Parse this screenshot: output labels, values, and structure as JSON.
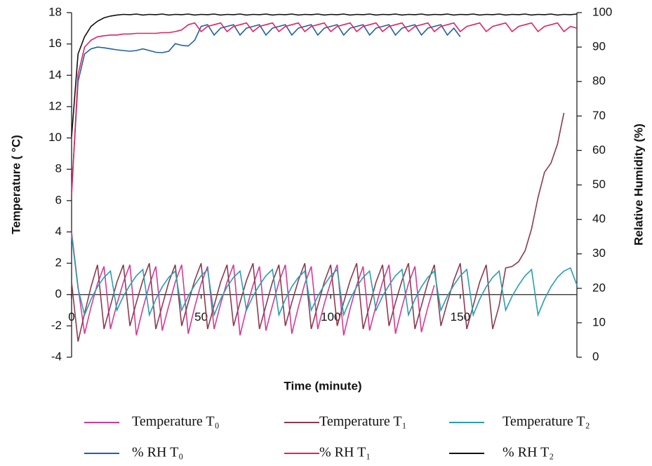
{
  "chart_data": {
    "type": "line",
    "x_label": "Time (minute)",
    "y_label": "Temperature ( °C)",
    "y2_label": "Relative Humidity (%)",
    "xlim": [
      0,
      195
    ],
    "xticks": [
      0,
      50,
      100,
      150
    ],
    "ylim": [
      -4,
      18
    ],
    "yticks": [
      -4,
      -2,
      0,
      2,
      4,
      6,
      8,
      10,
      12,
      14,
      16,
      18
    ],
    "y2lim": [
      0,
      100
    ],
    "y2ticks": [
      0,
      10,
      20,
      30,
      40,
      50,
      60,
      70,
      80,
      90,
      100
    ],
    "x": [
      0,
      2.5,
      5,
      7.5,
      10,
      12.5,
      15,
      17.5,
      20,
      22.5,
      25,
      27.5,
      30,
      32.5,
      35,
      37.5,
      40,
      42.5,
      45,
      47.5,
      50,
      52.5,
      55,
      57.5,
      60,
      62.5,
      65,
      67.5,
      70,
      72.5,
      75,
      77.5,
      80,
      82.5,
      85,
      87.5,
      90,
      92.5,
      95,
      97.5,
      100,
      102.5,
      105,
      107.5,
      110,
      112.5,
      115,
      117.5,
      120,
      122.5,
      125,
      127.5,
      130,
      132.5,
      135,
      137.5,
      140,
      142.5,
      145,
      147.5,
      150,
      152.5,
      155,
      157.5,
      160,
      162.5,
      165,
      167.5,
      170,
      172.5,
      175,
      177.5,
      180,
      182.5,
      185,
      187.5,
      190,
      192.5,
      195
    ],
    "series": [
      {
        "name": "Temperature T₀",
        "color": "#d4399a",
        "values": [
          4,
          0.5,
          -2.5,
          -0.8,
          0.7,
          1.8,
          -2.2,
          -0.6,
          0.8,
          1.9,
          -2.6,
          -0.9,
          0.6,
          1.8,
          -2.3,
          -0.7,
          0.8,
          1.9,
          -2.5,
          -0.8,
          0.7,
          1.8,
          -2.2,
          -0.6,
          0.8,
          1.9,
          -2.6,
          -0.9,
          0.6,
          1.8,
          -2.3,
          -0.7,
          0.8,
          1.9,
          -2.5,
          -0.8,
          0.7,
          1.8,
          -2.2,
          -0.6,
          0.8,
          1.9,
          -2.6,
          -0.9,
          0.6,
          1.8,
          -2.3,
          -0.7,
          0.8,
          1.9,
          -2.5,
          -0.8,
          0.7,
          1.8,
          -2.4,
          -0.8,
          0.6,
          null,
          null,
          null,
          null,
          null,
          null,
          null,
          null,
          null,
          null,
          null,
          null,
          null,
          null,
          null,
          null,
          null,
          null,
          null,
          null,
          null,
          null
        ]
      },
      {
        "name": "Temperature T₁",
        "color": "#8c3a4e",
        "values": [
          0.8,
          -3,
          -1.2,
          0.5,
          1.9,
          -2.2,
          -0.7,
          0.8,
          1.9,
          -2,
          -0.5,
          0.9,
          2,
          -2.2,
          -0.7,
          0.8,
          1.9,
          -2,
          -0.5,
          0.9,
          2,
          -2.2,
          -0.7,
          0.8,
          1.9,
          -2,
          -0.5,
          0.9,
          2,
          -2.2,
          -0.7,
          0.8,
          1.9,
          -2,
          -0.5,
          0.9,
          2,
          -2.2,
          -0.7,
          0.8,
          1.9,
          -2,
          -0.5,
          0.9,
          2,
          -2.2,
          -0.7,
          0.8,
          1.9,
          -2,
          -0.5,
          0.9,
          2,
          -2.2,
          -0.7,
          0.8,
          1.9,
          -2,
          -0.5,
          0.9,
          2,
          -2.2,
          -0.7,
          0.8,
          1.9,
          -2.2,
          -0.7,
          1.7,
          1.8,
          2.1,
          2.8,
          4.2,
          6.2,
          7.8,
          8.4,
          9.6,
          11.6,
          null,
          null
        ]
      },
      {
        "name": "Temperature T₂",
        "color": "#2a9db4",
        "values": [
          3.8,
          0.4,
          -1.3,
          -0.3,
          0.5,
          1.1,
          1.5,
          -1,
          -0.1,
          0.6,
          1.2,
          1.6,
          -1.3,
          -0.3,
          0.5,
          1.1,
          1.5,
          -1,
          -0.1,
          0.6,
          1.2,
          1.6,
          -1.3,
          -0.3,
          0.5,
          1.1,
          1.5,
          -1,
          -0.1,
          0.6,
          1.2,
          1.6,
          -1.3,
          -0.3,
          0.5,
          1.1,
          1.5,
          -1,
          -0.1,
          0.6,
          1.2,
          1.6,
          -1.3,
          -0.3,
          0.5,
          1.1,
          1.5,
          -1,
          -0.1,
          0.6,
          1.2,
          1.6,
          -1.3,
          -0.3,
          0.5,
          1.1,
          1.5,
          -1,
          -0.1,
          0.6,
          1.2,
          1.6,
          -1.3,
          -0.3,
          0.5,
          1.1,
          1.5,
          -1,
          -0.1,
          0.6,
          1.2,
          1.6,
          -1.3,
          -0.3,
          0.5,
          1.1,
          1.5,
          1.7,
          0.6
        ]
      },
      {
        "name": "% RH T₀",
        "color": "#1f5fae",
        "axis": "y2",
        "values": [
          48,
          80,
          88,
          89.5,
          90,
          89.8,
          89.5,
          89.2,
          89,
          88.8,
          89,
          89.5,
          89,
          88.5,
          88.4,
          88.8,
          91,
          90.5,
          90.3,
          92,
          96,
          96.5,
          93.5,
          95.5,
          96,
          96.5,
          93.5,
          95.5,
          96,
          96.5,
          93.5,
          95.5,
          96,
          96.5,
          93.5,
          95.5,
          96,
          96.5,
          93.5,
          95.5,
          96,
          96.5,
          93.5,
          95.5,
          96,
          96.5,
          93.5,
          95.5,
          96,
          96.5,
          93.5,
          95.5,
          96,
          96.5,
          93.5,
          95.5,
          96,
          96.5,
          93.5,
          95.5,
          93,
          null,
          null,
          null,
          null,
          null,
          null,
          null,
          null,
          null,
          null,
          null,
          null,
          null,
          null,
          null,
          null,
          null,
          null
        ]
      },
      {
        "name": "% RH T₁",
        "color": "#e0245e",
        "axis": "y2",
        "values": [
          47,
          82,
          90,
          92,
          93,
          93.3,
          93.5,
          93.5,
          93.8,
          93.8,
          94,
          94,
          94,
          94,
          94.2,
          94.2,
          94.5,
          95,
          96.5,
          97,
          94.5,
          96,
          96.5,
          97,
          94.5,
          96,
          96.5,
          97,
          94.5,
          96,
          96.5,
          97,
          94.5,
          96,
          96.5,
          97,
          94.5,
          96,
          96.5,
          97,
          94.5,
          96,
          96.5,
          97,
          94.5,
          96,
          96.5,
          97,
          94.5,
          96,
          96.5,
          97,
          94.5,
          96,
          96.5,
          97,
          94.5,
          96,
          96.5,
          97,
          94.5,
          96,
          96.5,
          97,
          94.5,
          96,
          96.5,
          97,
          94.5,
          96,
          96.5,
          97,
          94.5,
          96,
          96.5,
          97,
          94.5,
          96,
          95.5
        ]
      },
      {
        "name": "% RH T₂",
        "color": "#111111",
        "axis": "y2",
        "values": [
          64,
          88,
          93,
          96,
          97.5,
          98.5,
          99,
          99.3,
          99.5,
          99.4,
          99.6,
          99.3,
          99.5,
          99.4,
          99.6,
          99.3,
          99.5,
          99.4,
          99.6,
          99.3,
          99.5,
          99.4,
          99.6,
          99.3,
          99.5,
          99.4,
          99.6,
          99.3,
          99.5,
          99.4,
          99.6,
          99.3,
          99.5,
          99.4,
          99.6,
          99.3,
          99.5,
          99.4,
          99.6,
          99.3,
          99.5,
          99.4,
          99.6,
          99.3,
          99.5,
          99.4,
          99.6,
          99.3,
          99.5,
          99.4,
          99.6,
          99.3,
          99.5,
          99.4,
          99.6,
          99.3,
          99.5,
          99.4,
          99.6,
          99.3,
          99.5,
          99.4,
          99.6,
          99.3,
          99.5,
          99.4,
          99.6,
          99.3,
          99.5,
          99.4,
          99.6,
          99.3,
          99.5,
          99.4,
          99.6,
          99.3,
          99.5,
          99.4,
          99.6
        ]
      }
    ]
  }
}
